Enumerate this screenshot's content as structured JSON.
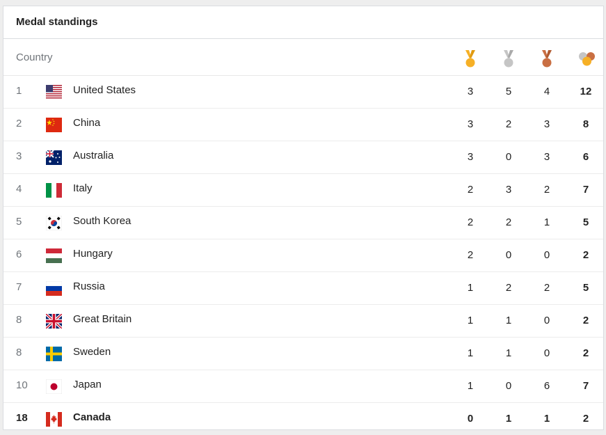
{
  "title": "Medal standings",
  "header": {
    "country": "Country"
  },
  "colors": {
    "gold": "#f6b026",
    "silver": "#c5c5c5",
    "bronze": "#c96f43"
  },
  "rows": [
    {
      "rank": "1",
      "country": "United States",
      "flag": "us-flag-icon",
      "gold": "3",
      "silver": "5",
      "bronze": "4",
      "total": "12"
    },
    {
      "rank": "2",
      "country": "China",
      "flag": "china-flag-icon",
      "gold": "3",
      "silver": "2",
      "bronze": "3",
      "total": "8"
    },
    {
      "rank": "3",
      "country": "Australia",
      "flag": "australia-flag-icon",
      "gold": "3",
      "silver": "0",
      "bronze": "3",
      "total": "6"
    },
    {
      "rank": "4",
      "country": "Italy",
      "flag": "italy-flag-icon",
      "gold": "2",
      "silver": "3",
      "bronze": "2",
      "total": "7"
    },
    {
      "rank": "5",
      "country": "South Korea",
      "flag": "south-korea-flag-icon",
      "gold": "2",
      "silver": "2",
      "bronze": "1",
      "total": "5"
    },
    {
      "rank": "6",
      "country": "Hungary",
      "flag": "hungary-flag-icon",
      "gold": "2",
      "silver": "0",
      "bronze": "0",
      "total": "2"
    },
    {
      "rank": "7",
      "country": "Russia",
      "flag": "russia-flag-icon",
      "gold": "1",
      "silver": "2",
      "bronze": "2",
      "total": "5"
    },
    {
      "rank": "8",
      "country": "Great Britain",
      "flag": "great-britain-flag-icon",
      "gold": "1",
      "silver": "1",
      "bronze": "0",
      "total": "2"
    },
    {
      "rank": "8",
      "country": "Sweden",
      "flag": "sweden-flag-icon",
      "gold": "1",
      "silver": "1",
      "bronze": "0",
      "total": "2"
    },
    {
      "rank": "10",
      "country": "Japan",
      "flag": "japan-flag-icon",
      "gold": "1",
      "silver": "0",
      "bronze": "6",
      "total": "7"
    },
    {
      "rank": "18",
      "country": "Canada",
      "flag": "canada-flag-icon",
      "gold": "0",
      "silver": "1",
      "bronze": "1",
      "total": "2"
    }
  ]
}
